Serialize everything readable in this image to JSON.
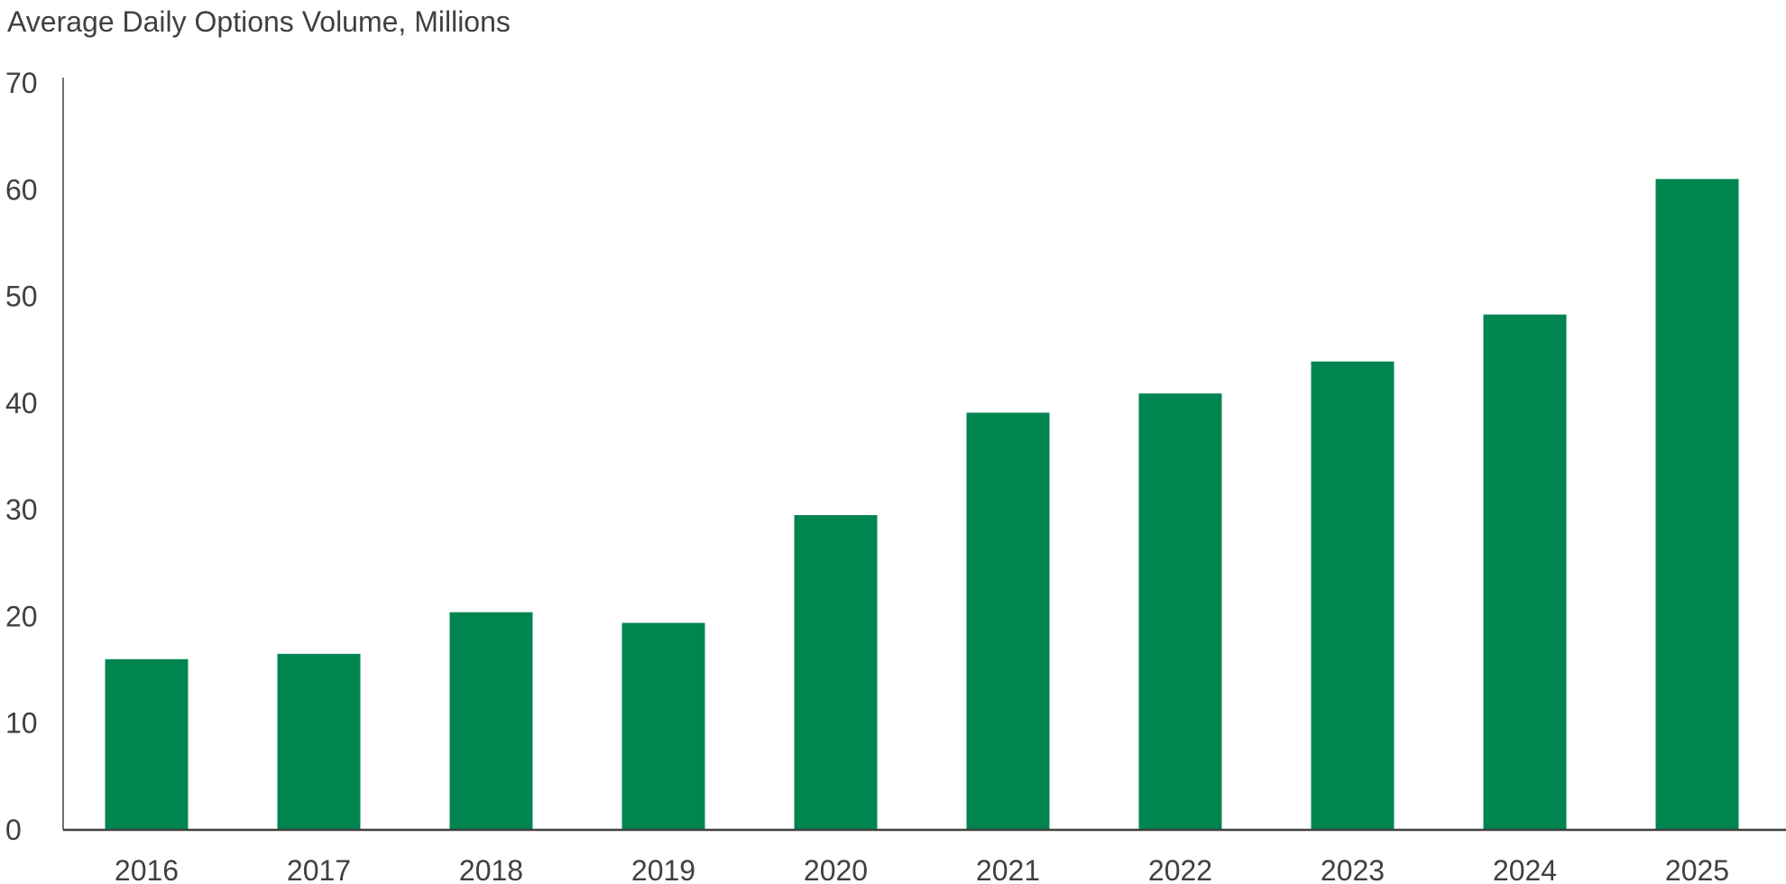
{
  "chart_data": {
    "type": "bar",
    "title": "Average Daily Options Volume, Millions",
    "xlabel": "",
    "ylabel": "",
    "categories": [
      "2016",
      "2017",
      "2018",
      "2019",
      "2020",
      "2021",
      "2022",
      "2023",
      "2024",
      "2025"
    ],
    "values": [
      16.0,
      16.5,
      20.4,
      19.4,
      29.5,
      39.1,
      40.9,
      43.9,
      48.3,
      61.0
    ],
    "ylim": [
      0,
      70
    ],
    "yticks": [
      "0",
      "10",
      "20",
      "30",
      "40",
      "50",
      "60",
      "70"
    ],
    "grid": false,
    "legend": "none",
    "colors": {
      "bar": "#008551",
      "axis": "#404040",
      "text": "#404040"
    }
  }
}
